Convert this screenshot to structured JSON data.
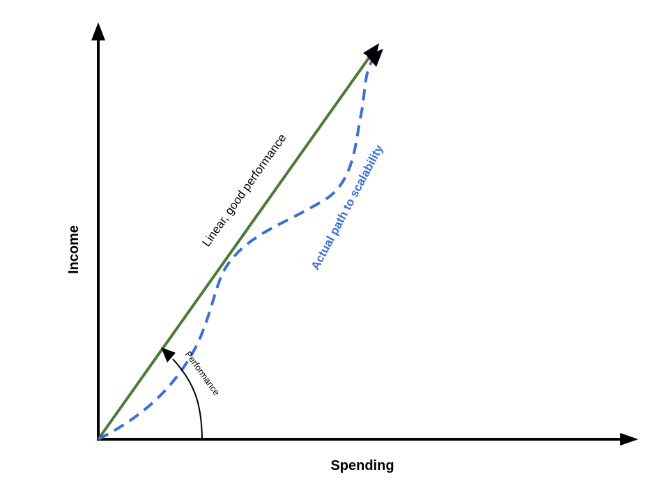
{
  "axes": {
    "x_label": "Spending",
    "y_label": "Income"
  },
  "lines": {
    "linear_label": "Linear, good performance",
    "actual_path_label": "Actual path to scalability",
    "performance_label": "Performance"
  },
  "colors": {
    "axis": "#000000",
    "linear_line": "#4a7a35",
    "actual_path": "#3a6fd8",
    "performance_arc": "#000000"
  }
}
